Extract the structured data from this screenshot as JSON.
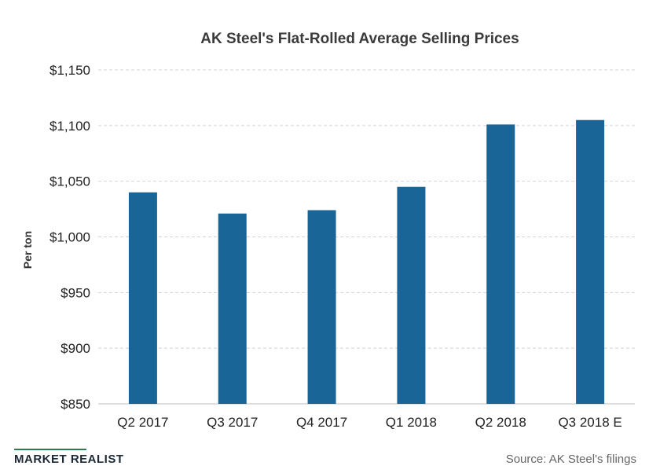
{
  "chart_data": {
    "type": "bar",
    "title": "AK Steel's Flat-Rolled Average Selling Prices",
    "ylabel": "Per ton",
    "xlabel": "",
    "categories": [
      "Q2 2017",
      "Q3 2017",
      "Q4 2017",
      "Q1 2018",
      "Q2 2018",
      "Q3 2018 E"
    ],
    "values": [
      1040,
      1021,
      1024,
      1045,
      1101,
      1105
    ],
    "ylim": [
      850,
      1150
    ],
    "yticks": [
      850,
      900,
      950,
      1000,
      1050,
      1100,
      1150
    ],
    "ytick_labels": [
      "$850",
      "$900",
      "$950",
      "$1,000",
      "$1,050",
      "$1,100",
      "$1,150"
    ],
    "grid": true,
    "bar_color": "#1a6598"
  },
  "footer": {
    "brand": "MARKET REALIST",
    "source": "Source: AK Steel's filings"
  }
}
